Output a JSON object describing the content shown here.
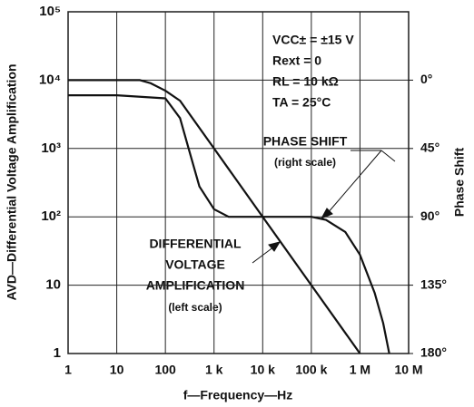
{
  "chart_data": {
    "type": "line",
    "xlabel": "f—Frequency—Hz",
    "ylabel": "AVD—Differential Voltage Amplification",
    "y2label": "Phase Shift",
    "xscale": "log",
    "yscale": "log",
    "y2_reverse": true,
    "grid": true,
    "xlim": [
      1,
      10000000
    ],
    "ylim": [
      1,
      100000
    ],
    "y2lim": [
      -45,
      180
    ],
    "xticks": [
      1,
      10,
      100,
      {
        "value": 1000,
        "label": "1 k"
      },
      {
        "value": 10000,
        "label": "10 k"
      },
      {
        "value": 100000,
        "label": "100 k"
      },
      {
        "value": 1000000,
        "label": "1 M"
      },
      {
        "value": 10000000,
        "label": "10 M"
      }
    ],
    "yticks": [
      1,
      10,
      {
        "value": 100,
        "label": "10²"
      },
      {
        "value": 1000,
        "label": "10³"
      },
      {
        "value": 10000,
        "label": "10⁴"
      },
      {
        "value": 100000,
        "label": "10⁵"
      }
    ],
    "y2ticks": [
      {
        "value": 0,
        "label": "0°"
      },
      {
        "value": 45,
        "label": "45°"
      },
      {
        "value": 90,
        "label": "90°"
      },
      {
        "value": 135,
        "label": "135°"
      },
      {
        "value": 180,
        "label": "180°"
      }
    ],
    "series": [
      {
        "name": "DIFFERENTIAL VOLTAGE AMPLIFICATION (left scale)",
        "color": "#111111",
        "x": [
          1,
          10,
          30,
          50,
          100,
          200,
          1000,
          10000,
          100000,
          1000000
        ],
        "values": [
          10000,
          10000,
          10000,
          9000,
          7000,
          5000,
          1000,
          100,
          10,
          1
        ]
      },
      {
        "name": "PHASE SHIFT (right scale)",
        "color": "#111111",
        "axis": "y2",
        "x": [
          1,
          10,
          100,
          200,
          300,
          500,
          1000,
          2000,
          5000,
          10000,
          100000,
          200000,
          500000,
          1000000,
          2000000,
          3000000,
          4000000
        ],
        "values": [
          10,
          10,
          12,
          25,
          45,
          70,
          85,
          90,
          90,
          90,
          90,
          92,
          100,
          115,
          140,
          160,
          180
        ]
      }
    ],
    "annotations": [
      "VCC± = ±15 V",
      "Rext = 0",
      "RL = 10 kΩ",
      "TA = 25°C",
      "PHASE SHIFT",
      "(right scale)",
      "DIFFERENTIAL",
      "VOLTAGE",
      "AMPLIFICATION",
      "(left scale)"
    ]
  }
}
